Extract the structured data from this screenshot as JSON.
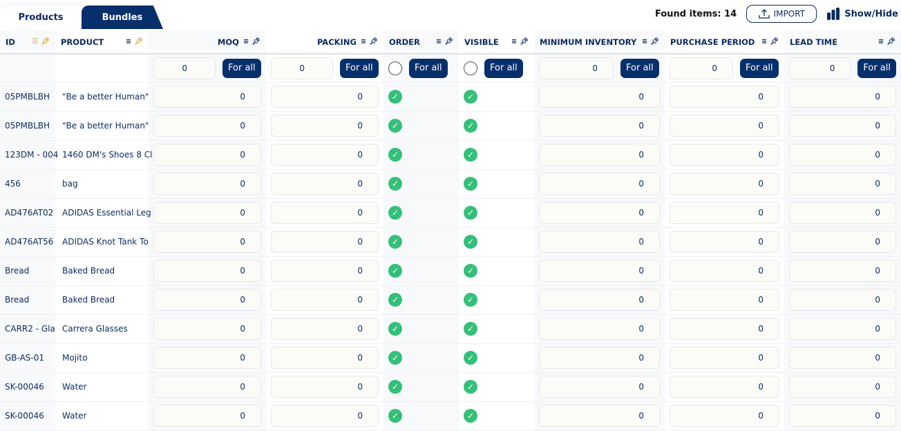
{
  "tabs": [
    {
      "label": "Products",
      "active": true
    },
    {
      "label": "Bundles",
      "active": false
    }
  ],
  "found_items": "Found items: 14",
  "import_label": "IMPORT",
  "showhide_label": "Show/Hide",
  "columns": [
    "ID",
    "PRODUCT",
    "MOQ",
    "PACKING",
    "ORDER",
    "VISIBLE",
    "MINIMUM INVENTORY",
    "PURCHASE PERIOD",
    "LEAD TIME"
  ],
  "for_all_label": "For all",
  "for_all_values": {
    "moq": "0",
    "packing": "0",
    "min_inventory": "0",
    "purchase_period": "0",
    "lead_time": "0"
  },
  "rows": [
    {
      "id": "05PMBLBH",
      "product": "\"Be a better Human\"",
      "moq": "0",
      "packing": "0",
      "min_inventory": "0",
      "purchase_period": "0",
      "lead_time": "0"
    },
    {
      "id": "05PMBLBH",
      "product": "\"Be a better Human\"",
      "moq": "0",
      "packing": "0",
      "min_inventory": "0",
      "purchase_period": "0",
      "lead_time": "0"
    },
    {
      "id": "123DM - 004",
      "product": "1460 DM's Shoes 8 Cl",
      "moq": "0",
      "packing": "0",
      "min_inventory": "0",
      "purchase_period": "0",
      "lead_time": "0"
    },
    {
      "id": "456",
      "product": "bag",
      "moq": "0",
      "packing": "0",
      "min_inventory": "0",
      "purchase_period": "0",
      "lead_time": "0"
    },
    {
      "id": "AD476AT02",
      "product": "ADIDAS Essential Leg",
      "moq": "0",
      "packing": "0",
      "min_inventory": "0",
      "purchase_period": "0",
      "lead_time": "0"
    },
    {
      "id": "AD476AT56",
      "product": "ADIDAS Knot Tank To",
      "moq": "0",
      "packing": "0",
      "min_inventory": "0",
      "purchase_period": "0",
      "lead_time": "0"
    },
    {
      "id": "Bread",
      "product": "Baked Bread",
      "moq": "0",
      "packing": "0",
      "min_inventory": "0",
      "purchase_period": "0",
      "lead_time": "0"
    },
    {
      "id": "Bread",
      "product": "Baked Bread",
      "moq": "0",
      "packing": "0",
      "min_inventory": "0",
      "purchase_period": "0",
      "lead_time": "0"
    },
    {
      "id": "CARR2 - Gla",
      "product": "Carrera Glasses",
      "moq": "0",
      "packing": "0",
      "min_inventory": "0",
      "purchase_period": "0",
      "lead_time": "0"
    },
    {
      "id": "GB-AS-01",
      "product": "Mojito",
      "moq": "0",
      "packing": "0",
      "min_inventory": "0",
      "purchase_period": "0",
      "lead_time": "0"
    },
    {
      "id": "SK-00046",
      "product": "Water",
      "moq": "0",
      "packing": "0",
      "min_inventory": "0",
      "purchase_period": "0",
      "lead_time": "0"
    },
    {
      "id": "SK-00046",
      "product": "Water",
      "moq": "0",
      "packing": "0",
      "min_inventory": "0",
      "purchase_period": "0",
      "lead_time": "0"
    }
  ],
  "colors": {
    "navy": "#072f6b",
    "check": "#35c07a",
    "pin_active": "#d4a63a"
  }
}
